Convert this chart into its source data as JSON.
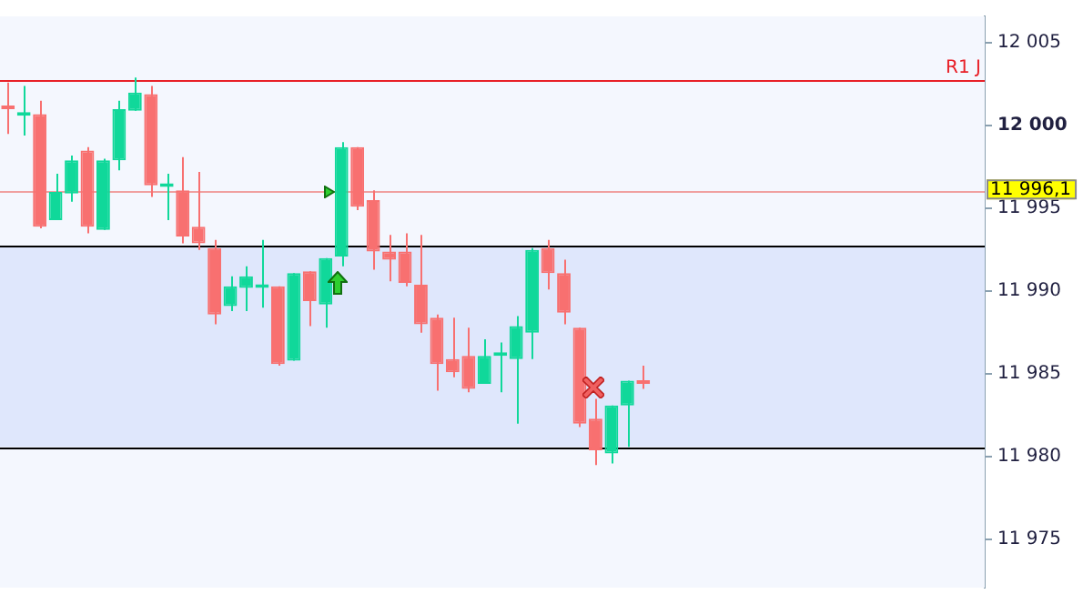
{
  "chart_data": {
    "type": "candlestick",
    "tick_labels": "y",
    "legend": false,
    "categories": [
      null,
      null,
      null,
      null,
      null,
      null,
      null,
      null,
      null,
      null,
      null,
      null,
      null,
      null,
      null,
      null,
      null,
      null,
      null,
      null,
      null,
      null,
      null,
      null,
      null,
      null,
      null,
      null,
      null,
      null,
      null,
      null,
      null,
      null,
      null,
      null,
      null,
      null,
      null,
      null,
      null,
      null,
      null,
      null,
      null,
      null,
      null,
      null,
      null,
      null,
      null,
      null,
      null,
      null,
      null,
      null,
      null,
      null,
      null,
      null,
      null,
      null
    ],
    "ohlc": [
      [
        12001.1,
        12002.6,
        11999.5,
        12001.0
      ],
      [
        12000.6,
        12002.4,
        11999.4,
        12000.7
      ],
      [
        12000.7,
        12001.5,
        11993.8,
        11993.9
      ],
      [
        11994.3,
        11997.1,
        11994.3,
        11996.0
      ],
      [
        11995.9,
        11998.2,
        11995.4,
        11997.9
      ],
      [
        11998.5,
        11998.7,
        11993.5,
        11993.9
      ],
      [
        11993.7,
        11998.0,
        11993.7,
        11997.9
      ],
      [
        11997.9,
        12001.5,
        11997.3,
        12001.0
      ],
      [
        12000.9,
        12002.9,
        12000.9,
        12002.0
      ],
      [
        12001.9,
        12002.4,
        11995.7,
        11996.4
      ],
      [
        11996.3,
        11997.1,
        11994.3,
        11996.4
      ],
      [
        11996.1,
        11998.1,
        11992.9,
        11993.3
      ],
      [
        11993.9,
        11997.2,
        11992.5,
        11992.9
      ],
      [
        11992.6,
        11993.1,
        11988.0,
        11988.6
      ],
      [
        11989.1,
        11990.9,
        11988.8,
        11990.3
      ],
      [
        11990.2,
        11991.5,
        11988.8,
        11990.9
      ],
      [
        11990.2,
        11993.1,
        11989.0,
        11990.3
      ],
      [
        11990.3,
        11990.3,
        11985.5,
        11985.6
      ],
      [
        11985.8,
        11991.1,
        11985.8,
        11991.1
      ],
      [
        11991.2,
        11991.2,
        11987.9,
        11989.4
      ],
      [
        11989.2,
        11992.0,
        11987.8,
        11992.0
      ],
      [
        11992.1,
        11999.0,
        11991.5,
        11998.7
      ],
      [
        11998.7,
        11998.7,
        11994.9,
        11995.1
      ],
      [
        11995.5,
        11996.1,
        11991.3,
        11992.4
      ],
      [
        11992.4,
        11993.4,
        11990.6,
        11991.9
      ],
      [
        11992.4,
        11993.5,
        11990.3,
        11990.5
      ],
      [
        11990.4,
        11993.4,
        11987.5,
        11988.0
      ],
      [
        11988.4,
        11988.6,
        11984.0,
        11985.6
      ],
      [
        11985.9,
        11988.4,
        11984.8,
        11985.1
      ],
      [
        11986.1,
        11987.8,
        11983.9,
        11984.1
      ],
      [
        11984.4,
        11987.1,
        11984.4,
        11986.1
      ],
      [
        11986.1,
        11986.9,
        11983.9,
        11986.2
      ],
      [
        11985.9,
        11988.5,
        11982.0,
        11987.9
      ],
      [
        11987.5,
        11992.6,
        11985.9,
        11992.5
      ],
      [
        11992.6,
        11993.1,
        11990.1,
        11991.1
      ],
      [
        11991.1,
        11991.9,
        11988.0,
        11988.7
      ],
      [
        11987.8,
        11987.8,
        11981.8,
        11982.0
      ],
      [
        11982.3,
        11983.5,
        11979.5,
        11980.4
      ],
      [
        11980.2,
        11983.1,
        11979.6,
        11983.1
      ],
      [
        11983.1,
        11984.6,
        11980.6,
        11984.6
      ],
      [
        11984.6,
        11985.5,
        11984.1,
        11984.4
      ],
      null,
      null,
      null,
      null,
      null,
      null,
      null,
      null,
      null,
      null,
      null,
      null,
      null,
      null,
      null,
      null,
      null,
      null,
      null,
      null,
      null
    ],
    "colors": [
      "#f87070",
      "#10d89a",
      "#f87070",
      "#10d89a",
      "#10d89a",
      "#f87070",
      "#10d89a",
      "#10d89a",
      "#10d89a",
      "#f87070",
      "#10d89a",
      "#f87070",
      "#f87070",
      "#f87070",
      "#10d89a",
      "#10d89a",
      "#10d89a",
      "#f87070",
      "#10d89a",
      "#f87070",
      "#10d89a",
      "#10d89a",
      "#f87070",
      "#f87070",
      "#f87070",
      "#f87070",
      "#f87070",
      "#f87070",
      "#f87070",
      "#f87070",
      "#10d89a",
      "#10d89a",
      "#10d89a",
      "#10d89a",
      "#f87070",
      "#f87070",
      "#f87070",
      "#f87070",
      "#10d89a",
      "#10d89a",
      "#f87070",
      null,
      null,
      null,
      null,
      null,
      null,
      null,
      null,
      null,
      null,
      null,
      null,
      null,
      null,
      null,
      null,
      null,
      null,
      null,
      null,
      null
    ],
    "ylim": [
      11972.1,
      12006.6
    ],
    "yticks": [
      {
        "value": 11975,
        "label": "11 975"
      },
      {
        "value": 11980,
        "label": "11 980"
      },
      {
        "value": 11985,
        "label": "11 985"
      },
      {
        "value": 11990,
        "label": "11 990"
      },
      {
        "value": 11995,
        "label": "11 995"
      },
      {
        "value": 12000,
        "label": "12 000"
      },
      {
        "value": 12005,
        "label": "12 005"
      }
    ],
    "bands": [
      {
        "axis": "y",
        "from": 11980.6,
        "to": 11992.75,
        "color": "#dfe7fc"
      }
    ],
    "ref_lines": [
      {
        "axis": "y",
        "value": 12002.8,
        "label": "R1 J",
        "color": "#e82028"
      },
      {
        "axis": "y",
        "value": 11996.1,
        "label": "11 996,1",
        "color": "#f0a0a0"
      },
      {
        "axis": "y",
        "value": 11992.75,
        "color": "#000000"
      },
      {
        "axis": "y",
        "value": 11980.6,
        "color": "#000000"
      }
    ]
  }
}
